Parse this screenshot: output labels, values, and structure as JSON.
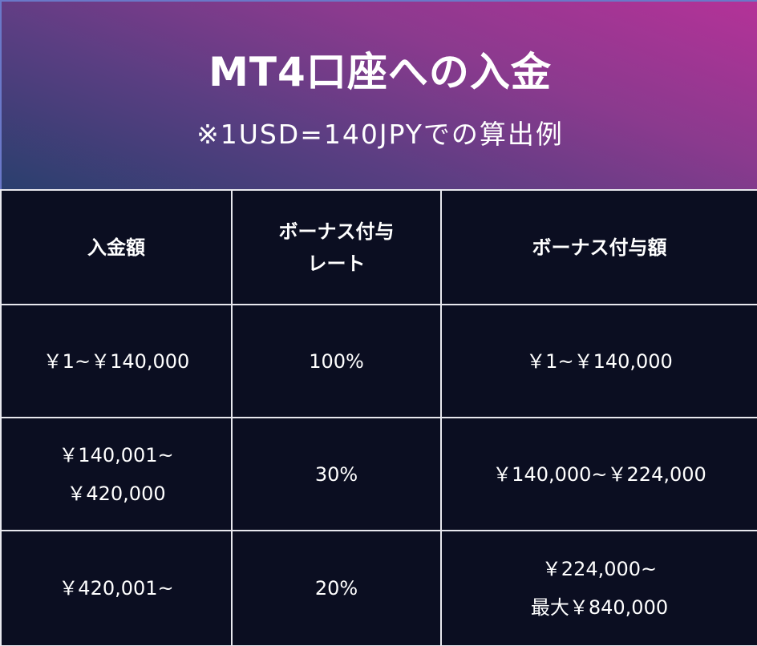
{
  "header": {
    "title": "MT4口座への入金",
    "subtitle": "※1USD=140JPYでの算出例"
  },
  "table": {
    "headers": {
      "col1": "入金額",
      "col2_line1": "ボーナス付与",
      "col2_line2": "レート",
      "col3": "ボーナス付与額"
    },
    "rows": [
      {
        "deposit_line1": "￥1~￥140,000",
        "deposit_line2": "",
        "rate": "100%",
        "bonus_line1": "￥1~￥140,000",
        "bonus_line2": ""
      },
      {
        "deposit_line1": "￥140,001~",
        "deposit_line2": "￥420,000",
        "rate": "30%",
        "bonus_line1": "￥140,000~￥224,000",
        "bonus_line2": ""
      },
      {
        "deposit_line1": "￥420,001~",
        "deposit_line2": "",
        "rate": "20%",
        "bonus_line1": "￥224,000~",
        "bonus_line2": "最大￥840,000"
      }
    ]
  },
  "colors": {
    "background": "#0b0e21",
    "gradient_pink": "#b43298",
    "gradient_blue": "#2a3f6e",
    "grid": "#e8e8ee",
    "text": "#ffffff"
  }
}
